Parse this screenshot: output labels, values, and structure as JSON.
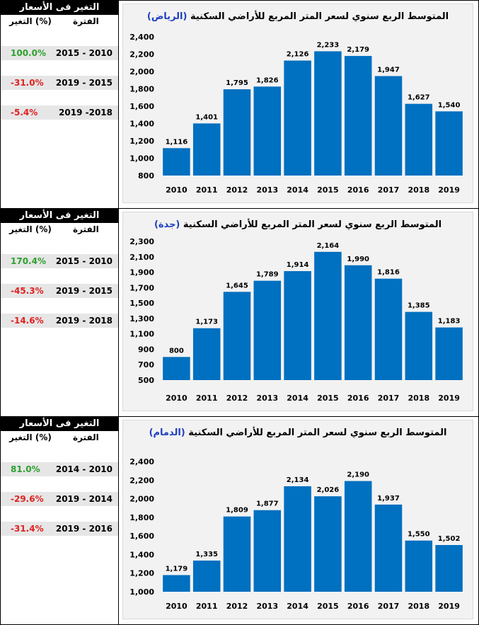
{
  "sections": [
    {
      "panel": {
        "title": "التغير فى الأسعار",
        "col_change": "التغير (%)",
        "col_period": "الفترة",
        "rows": [
          {
            "pct": "100.0%",
            "period": "2015 - 2010",
            "sign": "pos"
          },
          {
            "pct": "-31.0%",
            "period": "2019 - 2015",
            "sign": "neg"
          },
          {
            "pct": "-5.4%",
            "period": "2019 -2018",
            "sign": "neg"
          }
        ]
      },
      "chart_title_main": "المتوسط الربع سنوي لسعر المتر المربع للأراضي السكنية",
      "chart_title_city": "(الرياض)"
    },
    {
      "panel": {
        "title": "التغير فى الأسعار",
        "col_change": "التغير (%)",
        "col_period": "الفترة",
        "rows": [
          {
            "pct": "170.4%",
            "period": "2015 - 2010",
            "sign": "pos"
          },
          {
            "pct": "-45.3%",
            "period": "2019 - 2015",
            "sign": "neg"
          },
          {
            "pct": "-14.6%",
            "period": "2019 - 2018",
            "sign": "neg"
          }
        ]
      },
      "chart_title_main": "المتوسط الربع سنوي لسعر المتر المربع للأراضي السكنية",
      "chart_title_city": "(جدة)"
    },
    {
      "panel": {
        "title": "التغير فى الأسعار",
        "col_change": "التغير (%)",
        "col_period": "الفترة",
        "rows": [
          {
            "pct": "81.0%",
            "period": "2014 - 2010",
            "sign": "pos"
          },
          {
            "pct": "-29.6%",
            "period": "2019 - 2014",
            "sign": "neg"
          },
          {
            "pct": "-31.4%",
            "period": "2019 - 2016",
            "sign": "neg"
          }
        ]
      },
      "chart_title_main": "المتوسط الربع سنوي لسعر المتر المربع للأراضي السكنية",
      "chart_title_city": "(الدمام)"
    }
  ],
  "colors": {
    "bar": "#0070c0",
    "positive": "#2ca02c",
    "negative": "#e02020",
    "city": "#1f3fbf"
  },
  "chart_data": [
    {
      "type": "bar",
      "title": "المتوسط الربع سنوي لسعر المتر المربع للأراضي السكنية (الرياض)",
      "categories": [
        "2010",
        "2011",
        "2012",
        "2013",
        "2014",
        "2015",
        "2016",
        "2017",
        "2018",
        "2019"
      ],
      "values": [
        1116,
        1401,
        1795,
        1826,
        2126,
        2233,
        2179,
        1947,
        1627,
        1540
      ],
      "ylim": [
        800,
        2400
      ],
      "yticks": [
        800,
        1000,
        1200,
        1400,
        1600,
        1800,
        2000,
        2200,
        2400
      ],
      "grid": false,
      "legend": "none"
    },
    {
      "type": "bar",
      "title": "المتوسط الربع سنوي لسعر المتر المربع للأراضي السكنية (جدة)",
      "categories": [
        "2010",
        "2011",
        "2012",
        "2013",
        "2014",
        "2015",
        "2016",
        "2017",
        "2018",
        "2019"
      ],
      "values": [
        800,
        1173,
        1645,
        1789,
        1914,
        2164,
        1990,
        1816,
        1385,
        1183
      ],
      "ylim": [
        500,
        2300
      ],
      "yticks": [
        500,
        700,
        900,
        1100,
        1300,
        1500,
        1700,
        1900,
        2100,
        2300
      ],
      "grid": false,
      "legend": "none"
    },
    {
      "type": "bar",
      "title": "المتوسط الربع سنوي لسعر المتر المربع للأراضي السكنية (الدمام)",
      "categories": [
        "2010",
        "2011",
        "2012",
        "2013",
        "2014",
        "2015",
        "2016",
        "2017",
        "2018",
        "2019"
      ],
      "values": [
        1179,
        1335,
        1809,
        1877,
        2134,
        2026,
        2190,
        1937,
        1550,
        1502
      ],
      "ylim": [
        1000,
        2400
      ],
      "yticks": [
        1000,
        1200,
        1400,
        1600,
        1800,
        2000,
        2200,
        2400
      ],
      "grid": false,
      "legend": "none"
    }
  ]
}
